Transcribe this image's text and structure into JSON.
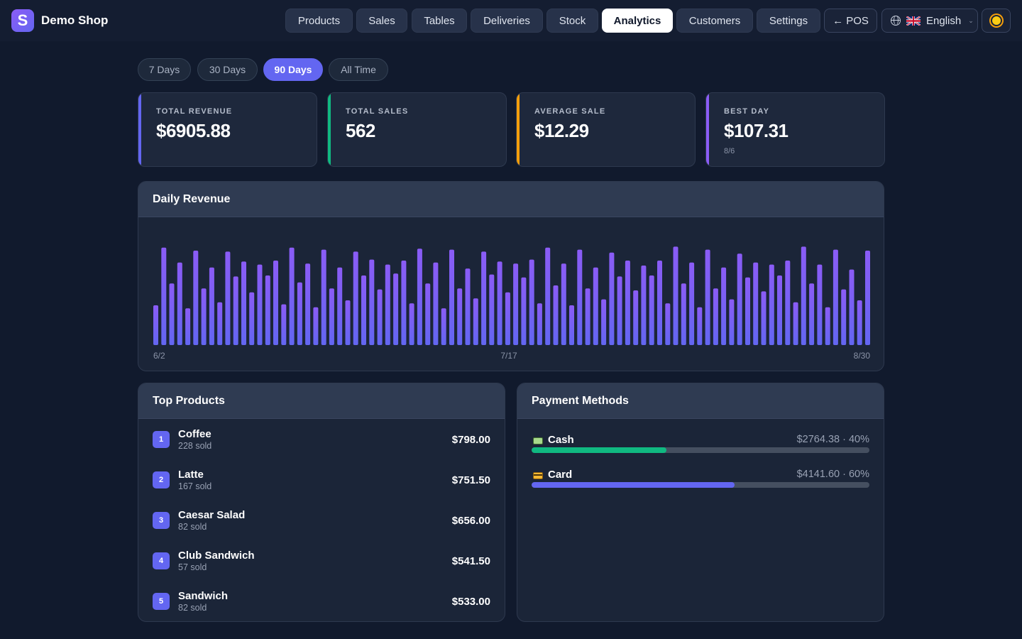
{
  "brand": {
    "name": "Demo Shop",
    "logo_letter": "S"
  },
  "nav": {
    "items": [
      "Products",
      "Sales",
      "Tables",
      "Deliveries",
      "Stock",
      "Analytics",
      "Customers",
      "Settings"
    ],
    "active": "Analytics",
    "pos_label": "← POS",
    "language": "English",
    "theme_icon": "sun-icon"
  },
  "ranges": {
    "items": [
      "7 Days",
      "30 Days",
      "90 Days",
      "All Time"
    ],
    "active": "90 Days"
  },
  "stats": [
    {
      "label": "TOTAL REVENUE",
      "value": "$6905.88",
      "sub": "",
      "color": "#6366f1"
    },
    {
      "label": "TOTAL SALES",
      "value": "562",
      "sub": "",
      "color": "#10b981"
    },
    {
      "label": "AVERAGE SALE",
      "value": "$12.29",
      "sub": "",
      "color": "#f59e0b"
    },
    {
      "label": "BEST DAY",
      "value": "$107.31",
      "sub": "8/6",
      "color": "#8b5cf6"
    }
  ],
  "daily_revenue": {
    "title": "Daily Revenue"
  },
  "chart_data": {
    "type": "bar",
    "title": "Daily Revenue",
    "x_tick_labels": [
      "6/2",
      "7/17",
      "8/30"
    ],
    "values": [
      40,
      98,
      62,
      83,
      37,
      95,
      57,
      78,
      43,
      94,
      69,
      84,
      53,
      81,
      70,
      85,
      41,
      98,
      63,
      82,
      38,
      96,
      57,
      78,
      45,
      94,
      70,
      86,
      56,
      81,
      72,
      85,
      42,
      97,
      62,
      83,
      37,
      96,
      57,
      77,
      47,
      94,
      71,
      84,
      53,
      82,
      68,
      86,
      42,
      98,
      60,
      82,
      40,
      96,
      57,
      78,
      46,
      93,
      69,
      85,
      55,
      80,
      70,
      85,
      42,
      99,
      62,
      83,
      38,
      96,
      57,
      78,
      46,
      92,
      68,
      83,
      54,
      81,
      70,
      85,
      43,
      99,
      62,
      81,
      38,
      96,
      56,
      76,
      45,
      95
    ],
    "color": "#7c5ce6"
  },
  "top_products": {
    "title": "Top Products",
    "items": [
      {
        "rank": "1",
        "name": "Coffee",
        "sold": "228 sold",
        "amount": "$798.00"
      },
      {
        "rank": "2",
        "name": "Latte",
        "sold": "167 sold",
        "amount": "$751.50"
      },
      {
        "rank": "3",
        "name": "Caesar Salad",
        "sold": "82 sold",
        "amount": "$656.00"
      },
      {
        "rank": "4",
        "name": "Club Sandwich",
        "sold": "57 sold",
        "amount": "$541.50"
      },
      {
        "rank": "5",
        "name": "Sandwich",
        "sold": "82 sold",
        "amount": "$533.00"
      }
    ]
  },
  "payment_methods": {
    "title": "Payment Methods",
    "items": [
      {
        "name": "Cash",
        "value": "$2764.38 · 40%",
        "share": 0.4,
        "color": "#10b981",
        "icon": "cash-icon"
      },
      {
        "name": "Card",
        "value": "$4141.60 · 60%",
        "share": 0.6,
        "color": "#6366f1",
        "icon": "card-icon"
      }
    ]
  }
}
